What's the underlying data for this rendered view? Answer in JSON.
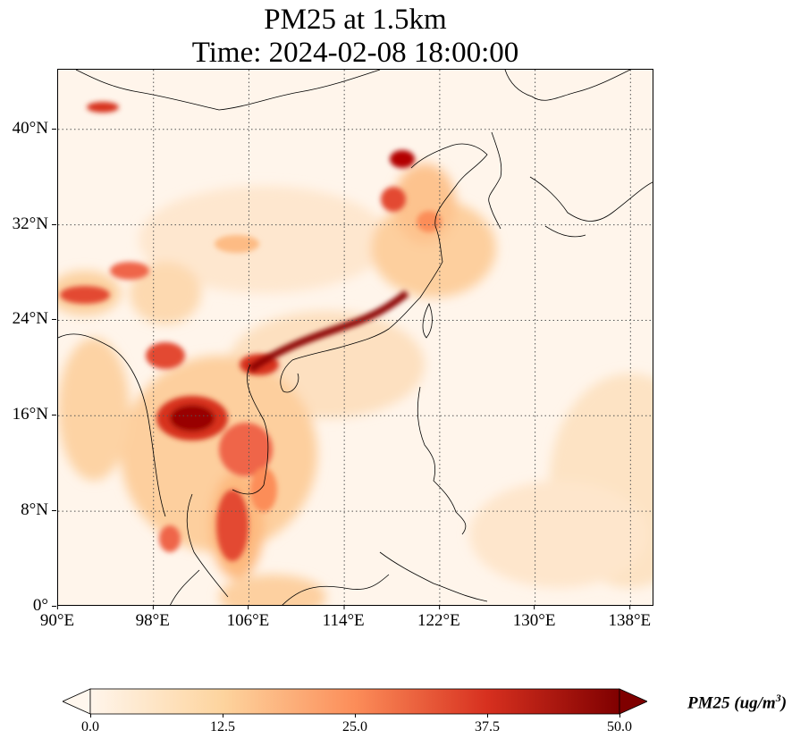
{
  "title_line1": "PM25 at 1.5km",
  "title_line2": "Time: 2024-02-08 18:00:00",
  "map": {
    "extent": {
      "lon_min": 90,
      "lon_max": 140,
      "lat_min": 0,
      "lat_max": 45
    },
    "lat_ticks": [
      {
        "value": 0,
        "label": "0°"
      },
      {
        "value": 8,
        "label": "8°N"
      },
      {
        "value": 16,
        "label": "16°N"
      },
      {
        "value": 24,
        "label": "24°N"
      },
      {
        "value": 32,
        "label": "32°N"
      },
      {
        "value": 40,
        "label": "40°N"
      }
    ],
    "lon_ticks": [
      {
        "value": 90,
        "label": "90°E"
      },
      {
        "value": 98,
        "label": "98°E"
      },
      {
        "value": 106,
        "label": "106°E"
      },
      {
        "value": 114,
        "label": "114°E"
      },
      {
        "value": 122,
        "label": "122°E"
      },
      {
        "value": 130,
        "label": "130°E"
      },
      {
        "value": 138,
        "label": "138°E"
      }
    ],
    "gridlines": "dotted",
    "background_color": "#fff5eb"
  },
  "colorbar": {
    "colormap": "OrRd-like",
    "min": 0,
    "max": 50,
    "ticks": [
      "0.0",
      "12.5",
      "25.0",
      "37.5",
      "50.0"
    ],
    "extend": "both",
    "label_text": "PM25 (ug/m",
    "label_sup": "3",
    "label_close": ")",
    "colors": [
      "#fff5eb",
      "#fdd49e",
      "#fc8d59",
      "#d7301f",
      "#7f0000"
    ]
  }
}
